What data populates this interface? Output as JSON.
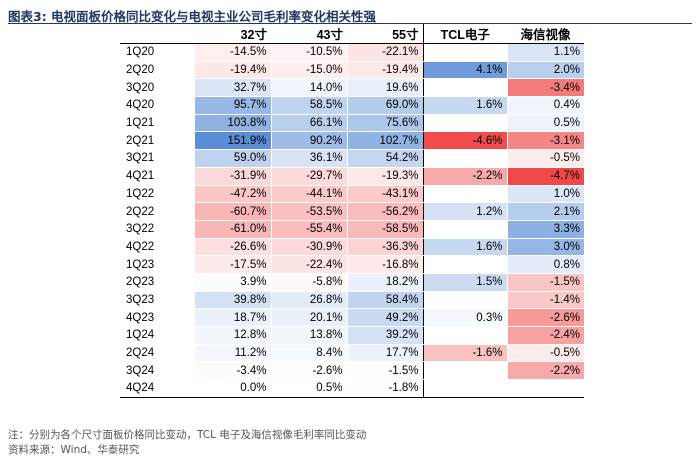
{
  "title": "图表3:  电视面板价格同比变化与电视主业公司毛利率变化相关性强",
  "table": {
    "columns": [
      "32寸",
      "43寸",
      "55寸",
      "TCL电子",
      "海信视像"
    ],
    "rows": [
      {
        "label": "1Q20",
        "cells": [
          "-14.5%",
          "-10.5%",
          "-22.1%",
          "",
          "1.1%"
        ]
      },
      {
        "label": "2Q20",
        "cells": [
          "-19.4%",
          "-15.0%",
          "-19.4%",
          "4.1%",
          "2.0%"
        ]
      },
      {
        "label": "3Q20",
        "cells": [
          "32.7%",
          "14.0%",
          "19.6%",
          "",
          "-3.4%"
        ]
      },
      {
        "label": "4Q20",
        "cells": [
          "95.7%",
          "58.5%",
          "69.0%",
          "1.6%",
          "0.4%"
        ]
      },
      {
        "label": "1Q21",
        "cells": [
          "103.8%",
          "66.1%",
          "75.6%",
          "",
          "0.5%"
        ]
      },
      {
        "label": "2Q21",
        "cells": [
          "151.9%",
          "90.2%",
          "102.7%",
          "-4.6%",
          "-3.1%"
        ]
      },
      {
        "label": "3Q21",
        "cells": [
          "59.0%",
          "36.1%",
          "54.2%",
          "",
          "-0.5%"
        ]
      },
      {
        "label": "4Q21",
        "cells": [
          "-31.9%",
          "-29.7%",
          "-19.3%",
          "-2.2%",
          "-4.7%"
        ]
      },
      {
        "label": "1Q22",
        "cells": [
          "-47.2%",
          "-44.1%",
          "-43.1%",
          "",
          "1.0%"
        ]
      },
      {
        "label": "2Q22",
        "cells": [
          "-60.7%",
          "-53.5%",
          "-56.2%",
          "1.2%",
          "2.1%"
        ]
      },
      {
        "label": "3Q22",
        "cells": [
          "-61.0%",
          "-55.4%",
          "-58.5%",
          "",
          "3.3%"
        ]
      },
      {
        "label": "4Q22",
        "cells": [
          "-26.6%",
          "-30.9%",
          "-36.3%",
          "1.6%",
          "3.0%"
        ]
      },
      {
        "label": "1Q23",
        "cells": [
          "-17.5%",
          "-22.4%",
          "-16.8%",
          "",
          "0.8%"
        ]
      },
      {
        "label": "2Q23",
        "cells": [
          "3.9%",
          "-5.8%",
          "18.2%",
          "1.5%",
          "-1.5%"
        ]
      },
      {
        "label": "3Q23",
        "cells": [
          "39.8%",
          "26.8%",
          "58.4%",
          "",
          "-1.4%"
        ]
      },
      {
        "label": "4Q23",
        "cells": [
          "18.7%",
          "20.1%",
          "49.2%",
          "0.3%",
          "-2.6%"
        ]
      },
      {
        "label": "1Q24",
        "cells": [
          "12.8%",
          "13.8%",
          "39.2%",
          "",
          "-2.4%"
        ]
      },
      {
        "label": "2Q24",
        "cells": [
          "11.2%",
          "8.4%",
          "17.7%",
          "-1.6%",
          "-0.5%"
        ]
      },
      {
        "label": "3Q24",
        "cells": [
          "-3.4%",
          "-2.6%",
          "-1.5%",
          "",
          "-2.2%"
        ]
      },
      {
        "label": "4Q24",
        "cells": [
          "0.0%",
          "0.5%",
          "-1.8%",
          "",
          ""
        ]
      }
    ]
  },
  "colors": {
    "positive": "#5b8ed6",
    "negative": "#f04848",
    "neutral": "#ffffff"
  },
  "notes": {
    "note": "注：分别为各个尺寸面板价格同比变动，TCL 电子及海信视像毛利率同比变动",
    "source": "资料来源：Wind、华泰研究"
  }
}
